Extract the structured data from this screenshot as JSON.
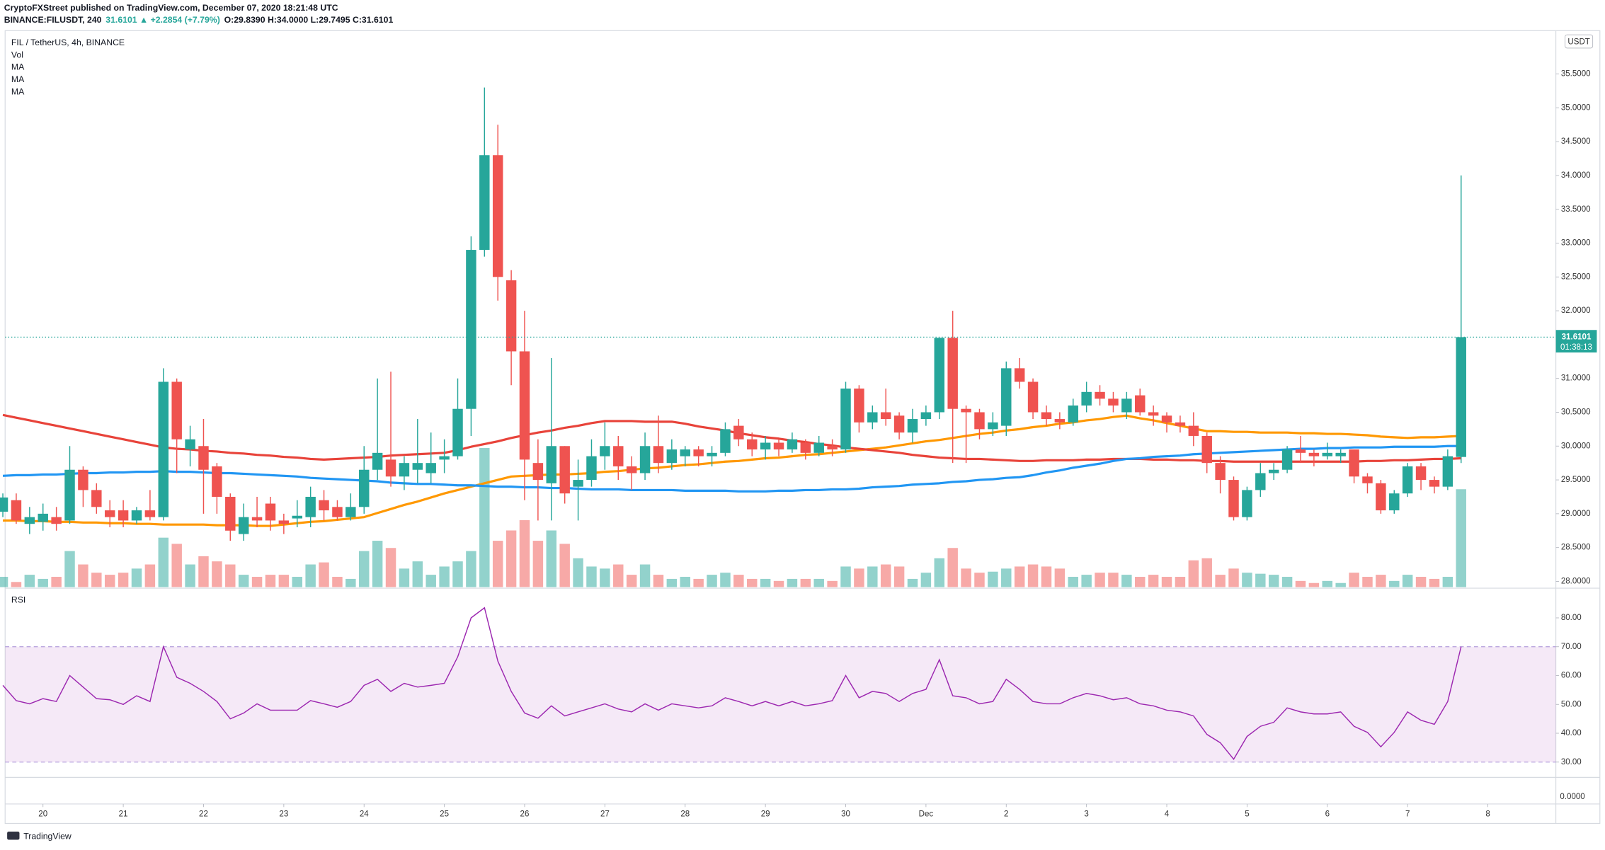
{
  "chart_data": {
    "type": "candlestick",
    "header": {
      "publisher": "CryptoFXStreet published on TradingView.com, December 07, 2020 18:21:48 UTC",
      "symbol": "BINANCE:FILUSDT, 240",
      "change": "31.6101 ▲ +2.2854 (+7.79%)",
      "ohlc": "O:29.8390 H:34.0000 L:29.7495 C:31.6101"
    },
    "title": "FIL / TetherUS, 4h, BINANCE",
    "volume_name": "Vol",
    "currency": "USDT",
    "countdown": "01:38:13",
    "extra_pane_label": "0.0000",
    "brand": "TradingView",
    "up_color": "#26a69a",
    "down_color": "#ef5350",
    "categories": [
      null,
      null,
      null,
      "20",
      null,
      null,
      null,
      null,
      null,
      "21",
      null,
      null,
      null,
      null,
      null,
      "22",
      null,
      null,
      null,
      null,
      null,
      "23",
      null,
      null,
      null,
      null,
      null,
      "24",
      null,
      null,
      null,
      null,
      null,
      "25",
      null,
      null,
      null,
      null,
      null,
      "26",
      null,
      null,
      null,
      null,
      null,
      "27",
      null,
      null,
      null,
      null,
      null,
      "28",
      null,
      null,
      null,
      null,
      null,
      "29",
      null,
      null,
      null,
      null,
      null,
      "30",
      null,
      null,
      null,
      null,
      null,
      "Dec",
      null,
      null,
      null,
      null,
      null,
      "2",
      null,
      null,
      null,
      null,
      null,
      "3",
      null,
      null,
      null,
      null,
      null,
      "4",
      null,
      null,
      null,
      null,
      null,
      "5",
      null,
      null,
      null,
      null,
      null,
      "6",
      null,
      null,
      null,
      null,
      null,
      "7",
      null,
      null,
      null,
      null,
      null,
      "8"
    ],
    "open": [
      29.03,
      29.2,
      28.85,
      28.88,
      28.95,
      28.9,
      29.65,
      29.35,
      29.05,
      29.05,
      28.9,
      29.05,
      28.95,
      30.95,
      29.95,
      30.0,
      29.7,
      29.25,
      28.7,
      28.95,
      29.15,
      28.9,
      28.93,
      28.95,
      29.2,
      29.1,
      28.95,
      29.1,
      29.65,
      29.8,
      29.55,
      29.65,
      29.6,
      29.8,
      29.85,
      30.55,
      32.9,
      34.3,
      32.45,
      31.4,
      29.75,
      29.45,
      30.0,
      29.4,
      29.5,
      29.85,
      30.0,
      29.7,
      29.6,
      30.0,
      29.75,
      29.85,
      29.95,
      29.85,
      29.9,
      30.3,
      30.1,
      29.95,
      30.05,
      29.95,
      30.05,
      29.9,
      30.0,
      29.95,
      30.85,
      30.35,
      30.5,
      30.45,
      30.2,
      30.4,
      30.5,
      31.6,
      30.55,
      30.5,
      30.25,
      30.3,
      31.15,
      30.95,
      30.5,
      30.4,
      30.35,
      30.6,
      30.8,
      30.7,
      30.5,
      30.75,
      30.5,
      30.45,
      30.35,
      30.3,
      30.15,
      29.75,
      29.5,
      28.95,
      29.35,
      29.6,
      29.65,
      29.95,
      29.9,
      29.85,
      29.85,
      29.95,
      29.55,
      29.45,
      29.05,
      29.3,
      29.7,
      29.5,
      29.4,
      29.839,
      null,
      null
    ],
    "high": [
      29.3,
      29.3,
      29.1,
      29.15,
      29.1,
      30.0,
      29.7,
      29.45,
      29.2,
      29.2,
      29.1,
      29.35,
      31.15,
      31.0,
      30.3,
      30.4,
      29.75,
      29.3,
      29.15,
      29.25,
      29.25,
      29.0,
      29.2,
      29.4,
      29.35,
      29.2,
      29.3,
      30.0,
      31.0,
      31.1,
      29.85,
      30.4,
      30.2,
      30.1,
      31.0,
      33.1,
      35.3,
      34.75,
      32.6,
      32.0,
      30.1,
      31.3,
      30.0,
      29.8,
      30.1,
      30.35,
      30.15,
      29.85,
      30.2,
      30.45,
      30.1,
      30.0,
      30.0,
      30.0,
      30.35,
      30.4,
      30.2,
      30.15,
      30.1,
      30.2,
      30.1,
      30.15,
      30.1,
      30.95,
      30.9,
      30.6,
      30.85,
      30.5,
      30.55,
      30.6,
      31.6,
      32.0,
      30.6,
      30.55,
      30.5,
      31.25,
      31.3,
      31.0,
      30.6,
      30.5,
      30.7,
      30.95,
      30.9,
      30.8,
      30.8,
      30.85,
      30.6,
      30.5,
      30.45,
      30.5,
      30.2,
      29.85,
      29.55,
      29.4,
      29.75,
      29.75,
      30.0,
      30.15,
      29.95,
      30.05,
      29.95,
      29.95,
      29.6,
      29.5,
      29.35,
      29.75,
      29.75,
      29.55,
      29.95,
      34.0,
      null,
      null
    ],
    "low": [
      28.95,
      28.85,
      28.7,
      28.75,
      28.75,
      28.85,
      29.1,
      29.0,
      28.8,
      28.8,
      28.85,
      28.9,
      28.9,
      29.6,
      29.7,
      29.0,
      29.0,
      28.6,
      28.6,
      28.8,
      28.75,
      28.7,
      28.8,
      28.8,
      28.9,
      28.9,
      28.9,
      29.0,
      29.5,
      29.4,
      29.35,
      29.45,
      29.45,
      29.6,
      29.8,
      30.15,
      32.8,
      32.15,
      30.9,
      29.2,
      28.9,
      28.9,
      29.15,
      28.9,
      29.4,
      29.65,
      29.5,
      29.35,
      29.5,
      29.6,
      29.65,
      29.7,
      29.7,
      29.7,
      29.85,
      30.0,
      29.85,
      29.8,
      29.85,
      29.9,
      29.8,
      29.85,
      29.85,
      29.9,
      30.2,
      30.25,
      30.3,
      30.1,
      30.05,
      30.3,
      30.4,
      29.75,
      29.75,
      30.1,
      30.15,
      30.15,
      30.85,
      30.4,
      30.3,
      30.25,
      30.3,
      30.5,
      30.6,
      30.5,
      30.4,
      30.45,
      30.3,
      30.2,
      30.2,
      30.0,
      29.6,
      29.3,
      28.9,
      28.9,
      29.25,
      29.5,
      29.6,
      29.75,
      29.7,
      29.8,
      29.75,
      29.45,
      29.3,
      29.0,
      29.0,
      29.25,
      29.35,
      29.3,
      29.35,
      29.7495,
      null,
      null
    ],
    "close": [
      29.24,
      28.9,
      28.95,
      29.0,
      28.85,
      29.65,
      29.35,
      29.1,
      28.95,
      28.9,
      29.05,
      28.95,
      30.95,
      30.1,
      30.1,
      29.65,
      29.25,
      28.75,
      28.95,
      28.9,
      28.9,
      28.85,
      28.97,
      29.25,
      29.05,
      28.95,
      29.1,
      29.65,
      29.9,
      29.55,
      29.75,
      29.75,
      29.75,
      29.85,
      30.55,
      32.9,
      34.3,
      32.5,
      31.4,
      29.8,
      29.5,
      30.0,
      29.3,
      29.5,
      29.85,
      30.0,
      29.7,
      29.6,
      30.0,
      29.75,
      29.95,
      29.95,
      29.85,
      29.9,
      30.25,
      30.1,
      29.95,
      30.05,
      29.95,
      30.1,
      29.9,
      30.05,
      29.95,
      30.85,
      30.35,
      30.5,
      30.4,
      30.2,
      30.4,
      30.5,
      31.6,
      30.55,
      30.5,
      30.25,
      30.35,
      31.15,
      30.95,
      30.5,
      30.4,
      30.35,
      30.6,
      30.8,
      30.7,
      30.6,
      30.7,
      30.5,
      30.45,
      30.35,
      30.3,
      30.15,
      29.75,
      29.5,
      28.95,
      29.35,
      29.6,
      29.65,
      29.95,
      29.9,
      29.85,
      29.9,
      29.9,
      29.55,
      29.45,
      29.05,
      29.3,
      29.7,
      29.5,
      29.4,
      29.85,
      31.6101,
      null,
      null
    ],
    "volume": [
      10,
      5,
      12,
      8,
      10,
      35,
      22,
      14,
      12,
      14,
      18,
      22,
      48,
      42,
      22,
      30,
      25,
      22,
      12,
      10,
      12,
      12,
      10,
      22,
      24,
      10,
      8,
      35,
      45,
      38,
      18,
      25,
      12,
      20,
      25,
      35,
      135,
      45,
      55,
      65,
      45,
      55,
      42,
      28,
      20,
      18,
      22,
      12,
      22,
      12,
      8,
      10,
      8,
      12,
      14,
      12,
      8,
      8,
      6,
      8,
      8,
      8,
      6,
      20,
      18,
      20,
      22,
      20,
      8,
      14,
      28,
      38,
      18,
      14,
      15,
      18,
      20,
      22,
      20,
      18,
      10,
      12,
      14,
      14,
      12,
      10,
      12,
      10,
      10,
      26,
      28,
      12,
      18,
      14,
      13,
      12,
      10,
      6,
      4,
      6,
      4,
      14,
      10,
      12,
      6,
      12,
      10,
      8,
      10,
      95,
      null,
      null
    ],
    "ma": [
      {
        "name": "MA",
        "color": "#ff9800",
        "values": [
          28.9,
          28.9,
          28.89,
          28.89,
          28.88,
          28.88,
          28.87,
          28.87,
          28.86,
          28.86,
          28.85,
          28.85,
          28.84,
          28.84,
          28.84,
          28.84,
          28.83,
          28.83,
          28.83,
          28.82,
          28.82,
          28.84,
          28.86,
          28.88,
          28.89,
          28.91,
          28.93,
          28.95,
          29.01,
          29.07,
          29.13,
          29.18,
          29.24,
          29.3,
          29.35,
          29.4,
          29.45,
          29.5,
          29.55,
          29.56,
          29.57,
          29.58,
          29.58,
          29.59,
          29.6,
          29.62,
          29.63,
          29.65,
          29.67,
          29.68,
          29.7,
          29.72,
          29.73,
          29.75,
          29.77,
          29.78,
          29.8,
          29.82,
          29.83,
          29.85,
          29.87,
          29.88,
          29.9,
          29.92,
          29.94,
          29.96,
          29.98,
          30.01,
          30.04,
          30.07,
          30.09,
          30.12,
          30.15,
          30.18,
          30.2,
          30.23,
          30.25,
          30.28,
          30.3,
          30.33,
          30.35,
          30.38,
          30.4,
          30.43,
          30.45,
          30.41,
          30.38,
          30.34,
          30.3,
          30.26,
          30.22,
          30.22,
          30.21,
          30.21,
          30.2,
          30.2,
          30.2,
          30.19,
          30.19,
          30.18,
          30.18,
          30.17,
          30.16,
          30.14,
          30.13,
          30.12,
          30.13,
          30.13,
          30.14,
          30.15,
          null,
          null
        ]
      },
      {
        "name": "MA",
        "color": "#e8433a",
        "values": [
          30.46,
          30.42,
          30.38,
          30.34,
          30.3,
          30.26,
          30.22,
          30.18,
          30.14,
          30.1,
          30.06,
          30.02,
          29.98,
          29.96,
          29.95,
          29.93,
          29.92,
          29.9,
          29.89,
          29.87,
          29.86,
          29.84,
          29.83,
          29.81,
          29.8,
          29.81,
          29.82,
          29.83,
          29.84,
          29.86,
          29.87,
          29.88,
          29.89,
          29.9,
          29.94,
          29.99,
          30.03,
          30.07,
          30.12,
          30.16,
          30.2,
          30.23,
          30.27,
          30.3,
          30.34,
          30.37,
          30.37,
          30.37,
          30.36,
          30.36,
          30.36,
          30.33,
          30.29,
          30.26,
          30.23,
          30.19,
          30.16,
          30.13,
          30.11,
          30.08,
          30.06,
          30.03,
          30.01,
          29.98,
          29.96,
          29.94,
          29.92,
          29.9,
          29.87,
          29.85,
          29.83,
          29.82,
          29.81,
          29.81,
          29.8,
          29.79,
          29.78,
          29.78,
          29.79,
          29.79,
          29.79,
          29.8,
          29.8,
          29.81,
          29.81,
          29.81,
          29.8,
          29.8,
          29.79,
          29.79,
          29.78,
          29.78,
          29.77,
          29.77,
          29.77,
          29.77,
          29.77,
          29.77,
          29.77,
          29.77,
          29.77,
          29.77,
          29.78,
          29.78,
          29.79,
          29.79,
          29.8,
          29.81,
          29.81,
          29.82,
          null,
          null
        ]
      },
      {
        "name": "MA",
        "color": "#2196f3",
        "values": [
          29.56,
          29.57,
          29.57,
          29.58,
          29.58,
          29.59,
          29.6,
          29.6,
          29.61,
          29.61,
          29.62,
          29.62,
          29.63,
          29.62,
          29.62,
          29.61,
          29.6,
          29.6,
          29.59,
          29.58,
          29.57,
          29.56,
          29.55,
          29.53,
          29.52,
          29.51,
          29.5,
          29.49,
          29.48,
          29.46,
          29.45,
          29.44,
          29.44,
          29.43,
          29.42,
          29.42,
          29.41,
          29.4,
          29.4,
          29.39,
          29.39,
          29.38,
          29.38,
          29.37,
          29.36,
          29.36,
          29.36,
          29.35,
          29.35,
          29.35,
          29.35,
          29.34,
          29.34,
          29.34,
          29.34,
          29.33,
          29.33,
          29.33,
          29.34,
          29.34,
          29.35,
          29.35,
          29.36,
          29.36,
          29.37,
          29.39,
          29.4,
          29.41,
          29.43,
          29.44,
          29.45,
          29.47,
          29.48,
          29.5,
          29.51,
          29.53,
          29.54,
          29.57,
          29.61,
          29.64,
          29.68,
          29.71,
          29.74,
          29.78,
          29.81,
          29.82,
          29.84,
          29.85,
          29.86,
          29.88,
          29.89,
          29.9,
          29.91,
          29.92,
          29.93,
          29.94,
          29.95,
          29.96,
          29.96,
          29.97,
          29.97,
          29.98,
          29.98,
          29.98,
          29.99,
          29.99,
          29.99,
          29.99,
          30.0,
          30.0,
          null,
          null
        ]
      }
    ],
    "ylim": [
      27.9,
      36.14
    ],
    "yticks": [
      {
        "value": 28,
        "label": "28.0000"
      },
      {
        "value": 28.5,
        "label": "28.5000"
      },
      {
        "value": 29,
        "label": "29.0000"
      },
      {
        "value": 29.5,
        "label": "29.5000"
      },
      {
        "value": 30,
        "label": "30.0000"
      },
      {
        "value": 30.5,
        "label": "30.5000"
      },
      {
        "value": 31,
        "label": "31.0000"
      },
      {
        "value": 31.5,
        "label": "31.5000"
      },
      {
        "value": 32,
        "label": "32.0000"
      },
      {
        "value": 32.5,
        "label": "32.5000"
      },
      {
        "value": 33,
        "label": "33.0000"
      },
      {
        "value": 33.5,
        "label": "33.5000"
      },
      {
        "value": 34,
        "label": "34.0000"
      },
      {
        "value": 34.5,
        "label": "34.5000"
      },
      {
        "value": 35,
        "label": "35.0000"
      },
      {
        "value": 35.5,
        "label": "35.5000"
      }
    ],
    "rsi": {
      "title": "RSI",
      "color": "#9c27b0",
      "band": [
        30,
        70
      ],
      "ylim": [
        24.7,
        90.3
      ],
      "yticks": [
        {
          "value": 30,
          "label": "30.00"
        },
        {
          "value": 40,
          "label": "40.00"
        },
        {
          "value": 50,
          "label": "50.00"
        },
        {
          "value": 60,
          "label": "60.00"
        },
        {
          "value": 70,
          "label": "70.00"
        },
        {
          "value": 80,
          "label": "80.00"
        }
      ],
      "values": [
        56.6,
        51.3,
        50.2,
        52,
        51,
        60,
        56,
        52,
        51.6,
        50,
        53,
        51,
        70,
        59.4,
        57.3,
        54.5,
        51,
        45,
        47,
        50.2,
        48,
        48,
        48,
        51.3,
        50.2,
        49,
        51,
        56.6,
        58.7,
        54.5,
        57.3,
        56,
        56.6,
        57.3,
        66.5,
        80,
        83.5,
        65,
        54.5,
        47,
        45.2,
        49.5,
        46,
        47.4,
        48.8,
        50.2,
        48.4,
        47.4,
        50.2,
        48,
        50.2,
        49.5,
        48.8,
        49.5,
        52.3,
        51,
        49.5,
        51,
        49.5,
        51,
        49.5,
        50.2,
        51.3,
        60,
        52.3,
        54.5,
        53.8,
        51,
        53.8,
        55.2,
        65.5,
        53,
        52.3,
        50.2,
        51,
        58.7,
        55.2,
        51,
        50.2,
        50.2,
        52.3,
        53.8,
        53,
        51.6,
        52.3,
        50.2,
        49.5,
        48,
        47.4,
        46,
        39.6,
        36.7,
        31,
        38.9,
        42.4,
        43.8,
        48.8,
        47.4,
        46.7,
        46.7,
        47.4,
        42.4,
        40.3,
        35.3,
        40.3,
        47.4,
        44.5,
        43.1,
        51,
        70,
        null,
        null
      ]
    }
  }
}
